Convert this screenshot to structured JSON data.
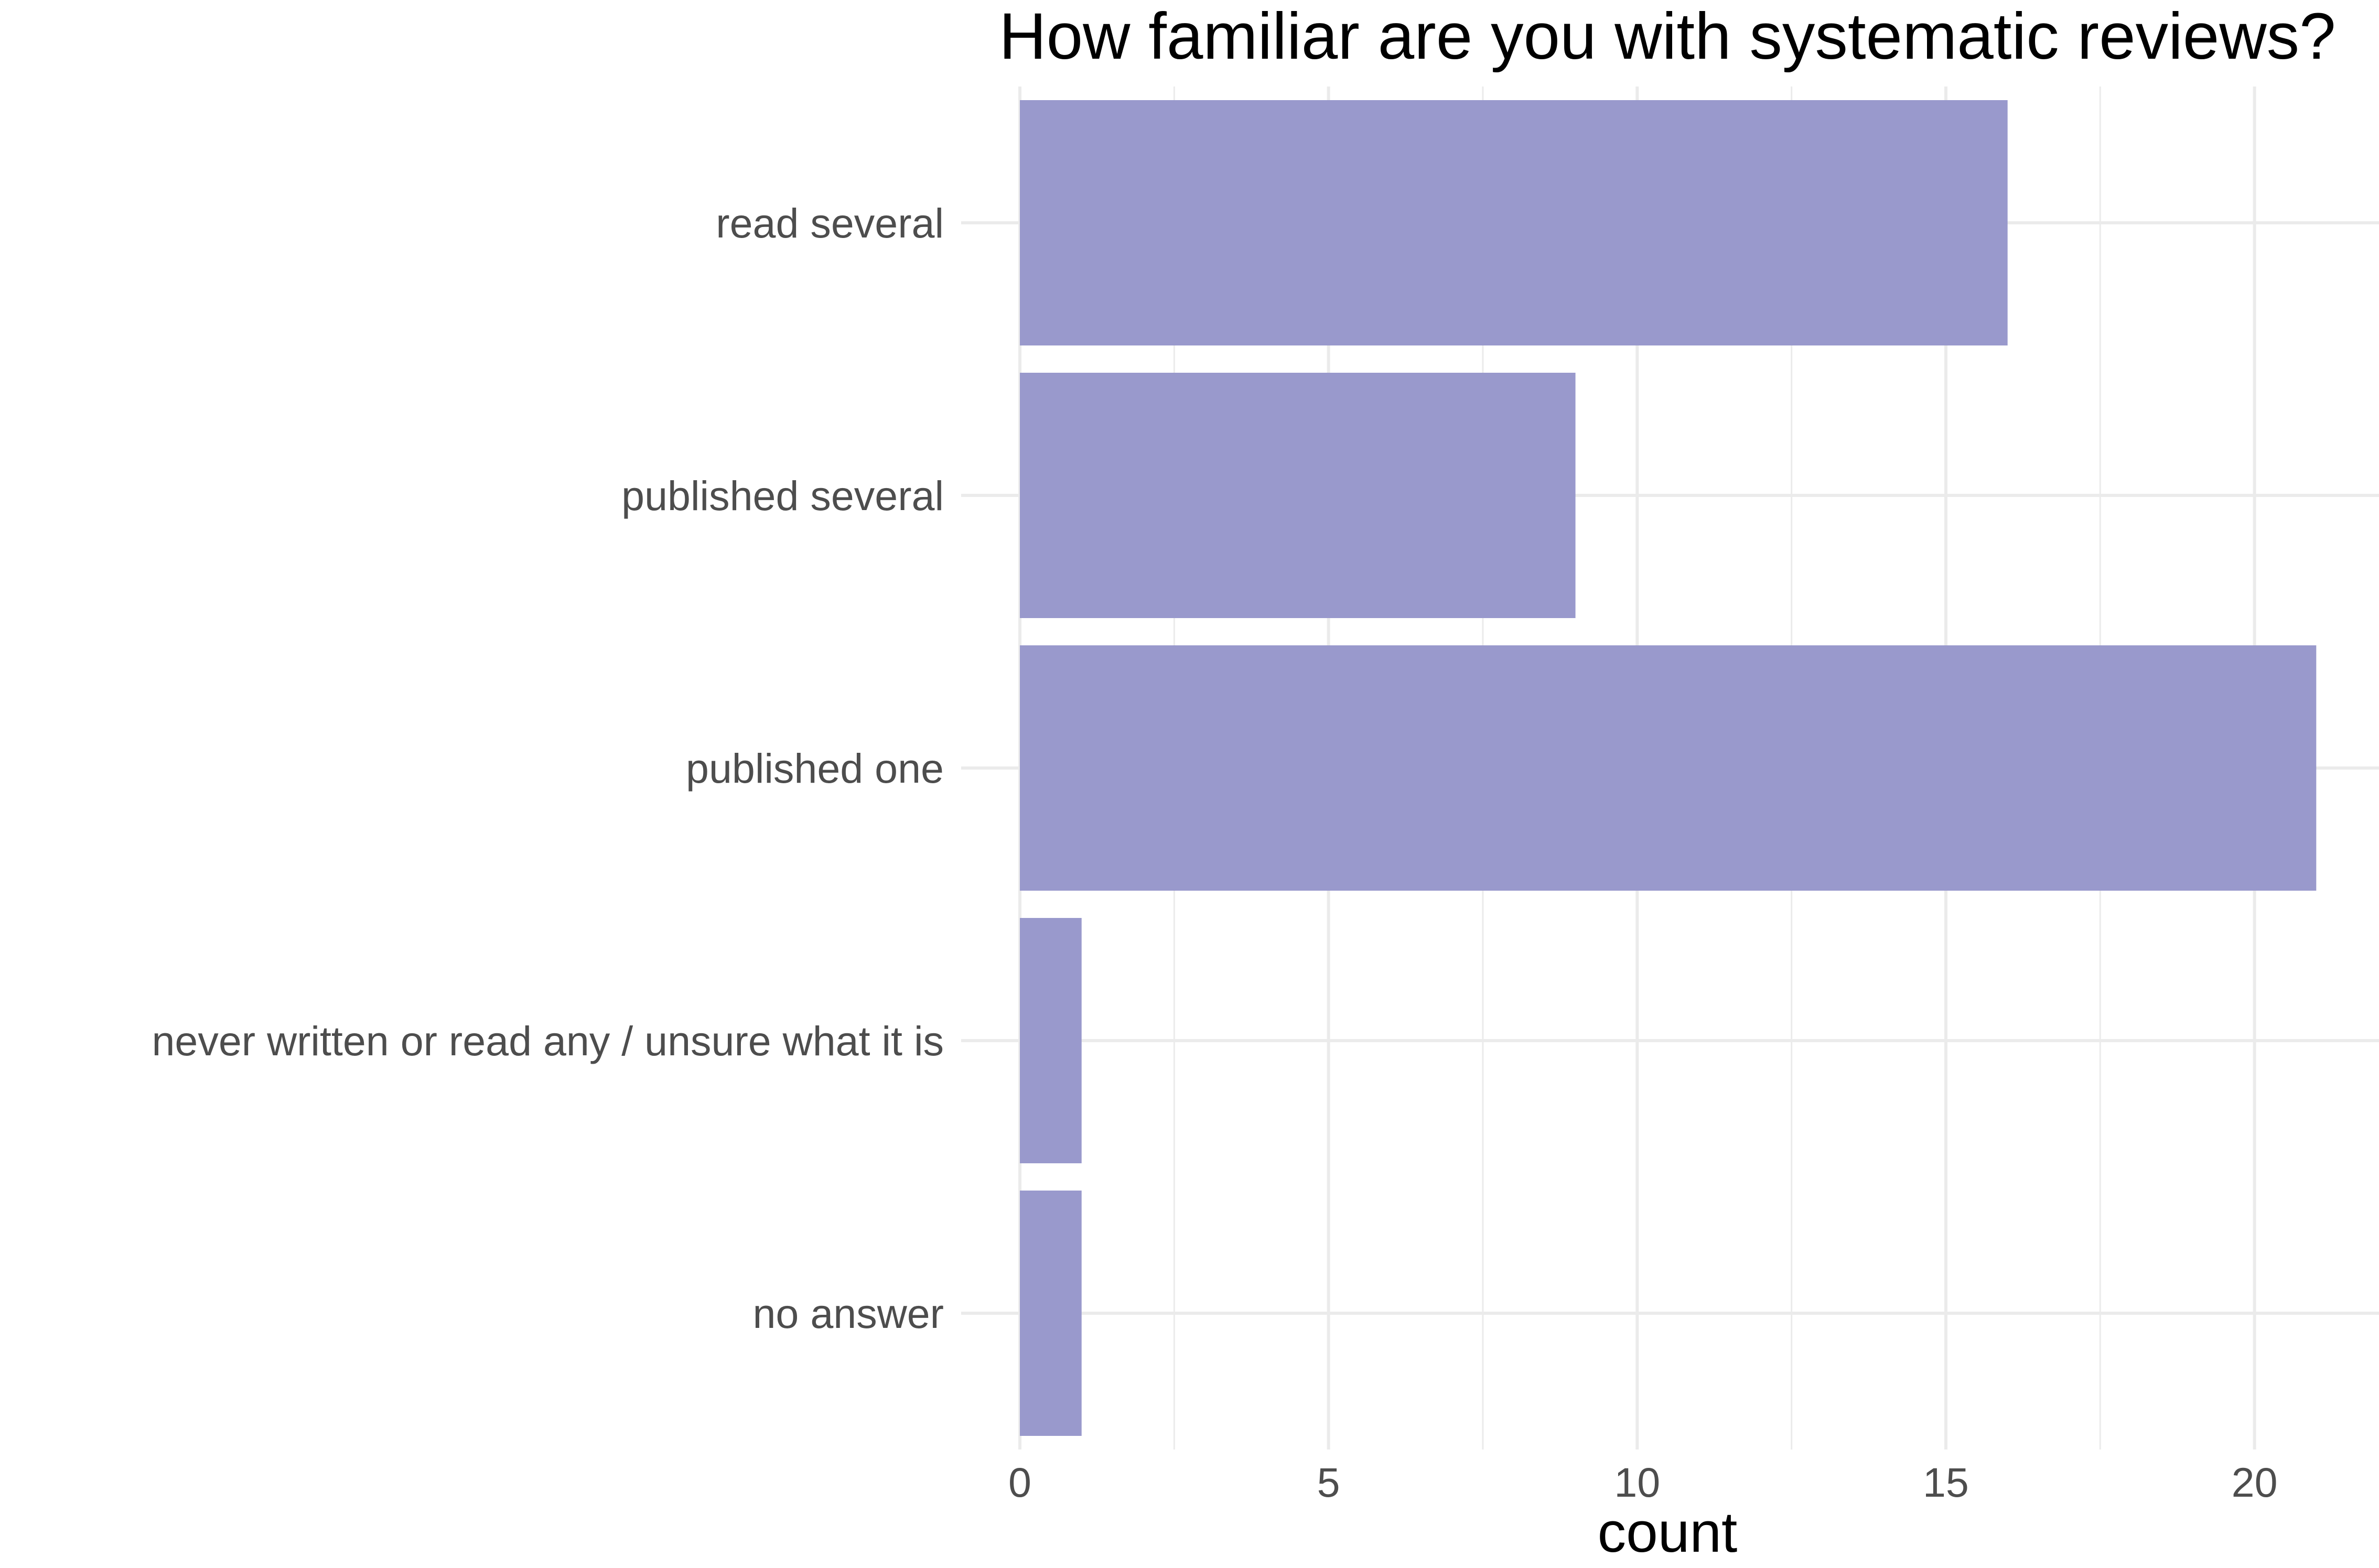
{
  "chart_data": {
    "type": "bar",
    "orientation": "horizontal",
    "title": "How familiar are you with systematic reviews?",
    "xlabel": "count",
    "ylabel": "",
    "categories": [
      "read several",
      "published several",
      "published one",
      "never written or read any / unsure what it is",
      "no answer"
    ],
    "values": [
      16,
      9,
      21,
      1,
      1
    ],
    "xlim": [
      0,
      22
    ],
    "x_ticks": [
      0,
      5,
      10,
      15,
      20
    ],
    "x_minor_ticks": [
      2.5,
      7.5,
      12.5,
      17.5
    ],
    "grid": true,
    "legend": "none",
    "bar_color": "#9999cc",
    "grid_color": "#ebebeb"
  }
}
